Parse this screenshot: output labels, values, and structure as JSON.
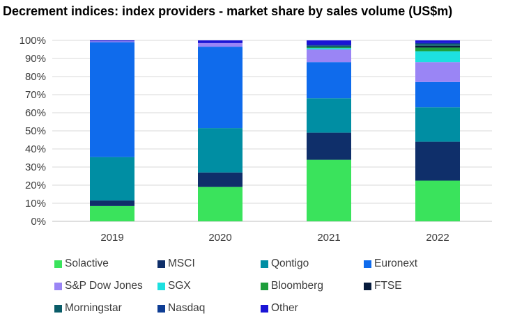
{
  "title": "Decrement indices: index providers - market share by sales volume (US$m)",
  "chart_data": {
    "type": "bar",
    "stacked": true,
    "categories": [
      "2019",
      "2020",
      "2021",
      "2022"
    ],
    "ylim": [
      0,
      100
    ],
    "yticks": [
      "0%",
      "10%",
      "20%",
      "30%",
      "40%",
      "50%",
      "60%",
      "70%",
      "80%",
      "90%",
      "100%"
    ],
    "grid": true,
    "legend_position": "bottom",
    "series": [
      {
        "name": "Solactive",
        "color": "#3ae35c",
        "values": [
          8.5,
          19,
          34,
          22.5
        ]
      },
      {
        "name": "MSCI",
        "color": "#0f2f6a",
        "values": [
          3,
          8,
          15,
          21.5
        ]
      },
      {
        "name": "Qontigo",
        "color": "#008ea3",
        "values": [
          24,
          24.5,
          19,
          19
        ]
      },
      {
        "name": "Euronext",
        "color": "#0f6bec",
        "values": [
          63.5,
          45,
          20,
          14
        ]
      },
      {
        "name": "S&P Dow Jones",
        "color": "#9a85f5",
        "values": [
          0.5,
          2,
          7,
          11
        ]
      },
      {
        "name": "SGX",
        "color": "#1de0e0",
        "values": [
          0,
          0,
          0.7,
          6
        ]
      },
      {
        "name": "Bloomberg",
        "color": "#1e9e3c",
        "values": [
          0,
          0,
          0.5,
          2
        ]
      },
      {
        "name": "FTSE",
        "color": "#071b3c",
        "values": [
          0,
          0,
          0,
          1
        ]
      },
      {
        "name": "Morningstar",
        "color": "#0a5c68",
        "values": [
          0,
          0,
          0.8,
          1
        ]
      },
      {
        "name": "Nasdaq",
        "color": "#0e3d94",
        "values": [
          0,
          0,
          0.5,
          0.5
        ]
      },
      {
        "name": "Other",
        "color": "#1a14d6",
        "values": [
          0.5,
          1.5,
          2.5,
          1.5
        ]
      }
    ]
  }
}
